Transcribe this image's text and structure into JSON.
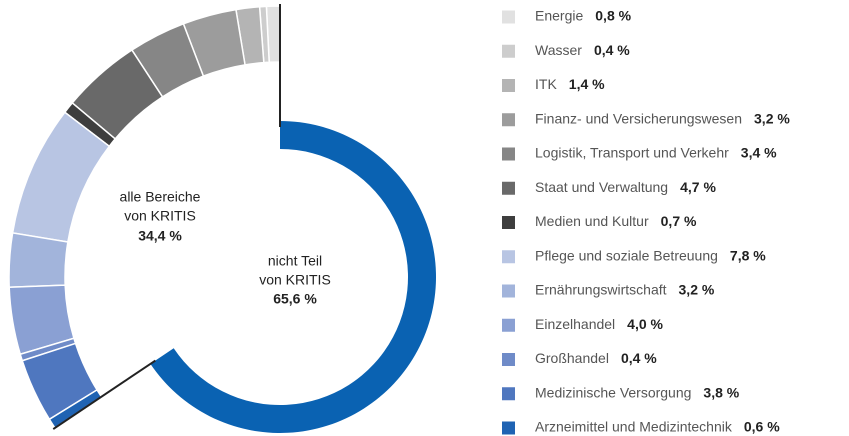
{
  "chart_data": {
    "type": "donut",
    "categories": [
      "Energie",
      "Wasser",
      "ITK",
      "Finanz- und Versicherungswesen",
      "Logistik, Transport und Verkehr",
      "Staat und Verwaltung",
      "Medien und Kultur",
      "Pflege und soziale Betreuung",
      "Ernährungswirtschaft",
      "Einzelhandel",
      "Großhandel",
      "Medizinische Versorgung",
      "Arzneimittel und Medizintechnik"
    ],
    "values": [
      0.8,
      0.4,
      1.4,
      3.2,
      3.4,
      4.7,
      0.7,
      7.8,
      3.2,
      4.0,
      0.4,
      3.8,
      0.6
    ],
    "value_labels": [
      "0,8 %",
      "0,4 %",
      "1,4 %",
      "3,2 %",
      "3,4 %",
      "4,7 %",
      "0,7 %",
      "7,8 %",
      "3,2 %",
      "4,0 %",
      "0,4 %",
      "3,8 %",
      "0,6 %"
    ],
    "colors": [
      "#e1e1e1",
      "#cdcdcd",
      "#b4b4b4",
      "#9c9c9c",
      "#868686",
      "#696969",
      "#3e3e3e",
      "#b8c5e3",
      "#a2b4db",
      "#8aa0d3",
      "#6f8bc8",
      "#4f77bf",
      "#1f63b3"
    ],
    "kritis": {
      "label_lines": [
        "alle Bereiche",
        "von KRITIS"
      ],
      "value": 34.4,
      "value_label": "34,4 %"
    },
    "rest": {
      "label_lines": [
        "nicht Teil",
        "von KRITIS"
      ],
      "value": 65.6,
      "value_label": "65,6 %",
      "color": "#0a62b2"
    }
  }
}
